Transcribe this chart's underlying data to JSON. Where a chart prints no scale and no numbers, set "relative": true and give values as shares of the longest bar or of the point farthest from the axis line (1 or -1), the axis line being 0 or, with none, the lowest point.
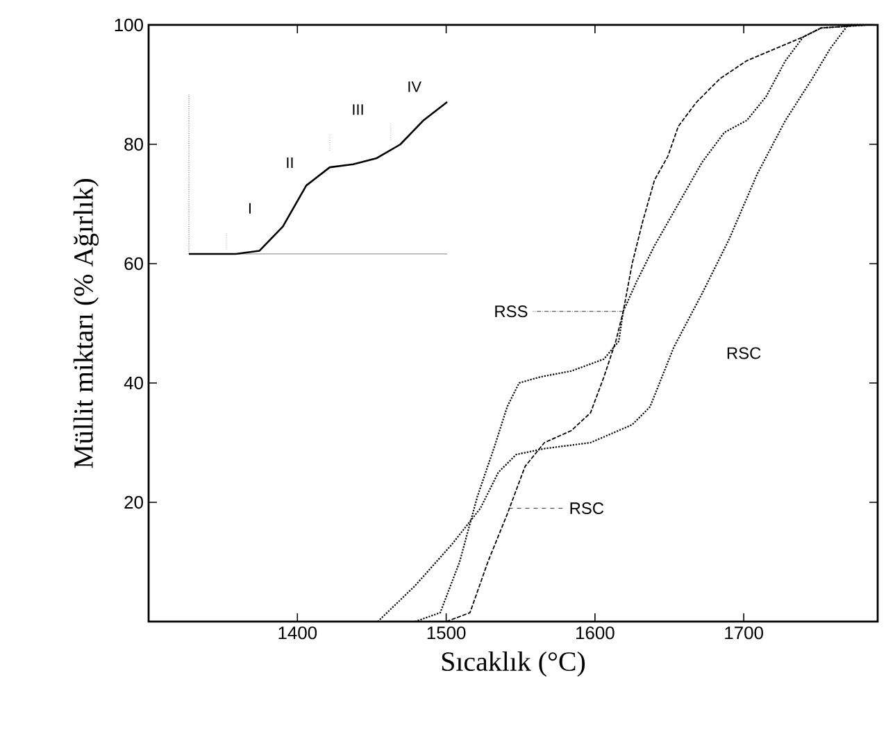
{
  "chart_data": [
    {
      "type": "line",
      "xlabel": "Sıcaklık (°C)",
      "ylabel": "Müllit miktarı (% Ağırlık)",
      "xlim": [
        1300,
        1790
      ],
      "ylim": [
        0,
        100
      ],
      "xticks": [
        1400,
        1500,
        1600,
        1700
      ],
      "yticks": [
        20,
        40,
        60,
        80,
        100
      ],
      "grid": false,
      "series": [
        {
          "color": "#000000",
          "line_style": "dotted",
          "x": [
            1479,
            1496,
            1509,
            1521,
            1532,
            1541,
            1549,
            1563,
            1584,
            1606,
            1616,
            1619,
            1628,
            1640,
            1656,
            1672,
            1687,
            1702,
            1715,
            1728,
            1740,
            1752,
            1783
          ],
          "values": [
            0,
            1.5,
            10,
            21,
            29,
            36,
            40,
            41,
            42,
            44,
            47,
            52,
            57,
            63,
            70,
            77,
            82,
            84,
            88,
            94,
            98,
            99.5,
            100
          ]
        },
        {
          "color": "#000000",
          "line_style": "dashed",
          "x": [
            1500,
            1516,
            1528,
            1541,
            1553,
            1566,
            1584,
            1597,
            1606,
            1614,
            1619,
            1625,
            1632,
            1640,
            1649,
            1656,
            1668,
            1684,
            1702,
            1721,
            1740,
            1752,
            1783
          ],
          "values": [
            0,
            1.5,
            10,
            18,
            26,
            30,
            32,
            35,
            41,
            47,
            52,
            60,
            67,
            74,
            78,
            83,
            87,
            91,
            94,
            96,
            98,
            99.5,
            100
          ]
        },
        {
          "color": "#000000",
          "line_style": "dotted",
          "x": [
            1454,
            1479,
            1504,
            1523,
            1535,
            1547,
            1566,
            1597,
            1625,
            1637,
            1653,
            1672,
            1690,
            1709,
            1728,
            1746,
            1758,
            1770,
            1786
          ],
          "values": [
            0,
            6,
            13,
            19,
            25,
            28,
            29,
            30,
            33,
            36,
            46,
            55,
            64,
            75,
            84,
            91,
            96,
            100,
            100
          ]
        }
      ],
      "annotations": [
        {
          "text": "RSS",
          "x": 1619,
          "y": 52
        },
        "RSC",
        "RSC"
      ]
    },
    {
      "type": "line",
      "relative": true,
      "categories": [
        null,
        null,
        null,
        null,
        null,
        null,
        null,
        null,
        null,
        null,
        null,
        null
      ],
      "series": [
        {
          "color": "#000000",
          "line_style": "solid",
          "values": [
            0,
            0,
            0,
            0.02,
            0.18,
            0.45,
            0.57,
            0.59,
            0.63,
            0.72,
            0.88,
            1
          ]
        }
      ],
      "annotations": [
        "I",
        "II",
        "III",
        "IV"
      ]
    }
  ]
}
